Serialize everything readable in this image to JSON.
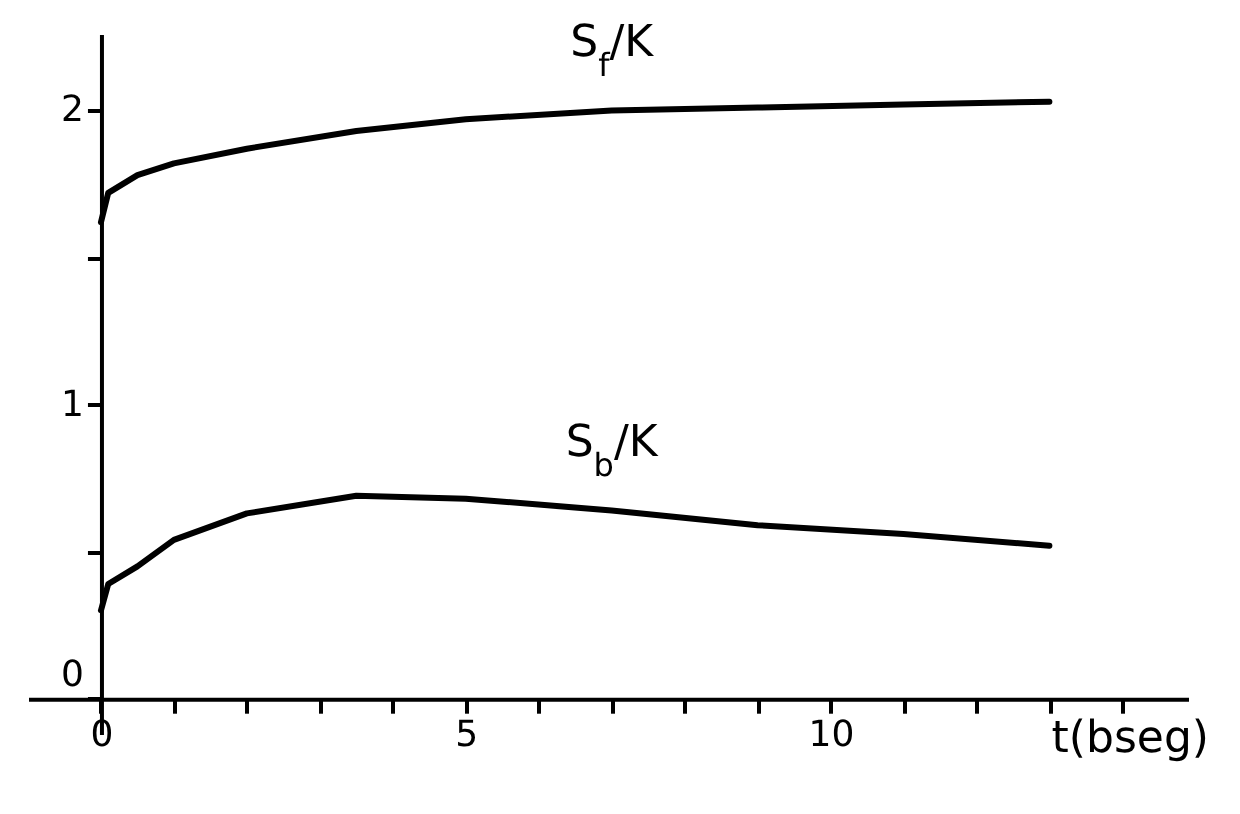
{
  "chart_data": {
    "type": "line",
    "xlabel": "t(bseg)",
    "x": [
      0,
      0.1,
      0.5,
      1,
      2,
      3.5,
      5,
      7,
      9,
      11,
      13
    ],
    "series": [
      {
        "name": "S$_{f}$/K",
        "color": "#000000",
        "values": [
          1.62,
          1.72,
          1.78,
          1.82,
          1.87,
          1.93,
          1.97,
          2.0,
          2.01,
          2.02,
          2.03
        ]
      },
      {
        "name": "S$_{b}$/K",
        "color": "#000000",
        "values": [
          0.3,
          0.39,
          0.45,
          0.54,
          0.63,
          0.69,
          0.68,
          0.64,
          0.59,
          0.56,
          0.52
        ]
      }
    ],
    "xlim": [
      -1,
      14.9
    ],
    "ylim": [
      -0.12,
      2.26
    ],
    "xticks": [
      0,
      {
        "value": 1,
        "label": null
      },
      {
        "value": 2,
        "label": null
      },
      {
        "value": 3,
        "label": null
      },
      {
        "value": 4,
        "label": null
      },
      5,
      {
        "value": 6,
        "label": null
      },
      {
        "value": 7,
        "label": null
      },
      {
        "value": 8,
        "label": null
      },
      {
        "value": 9,
        "label": null
      },
      10,
      {
        "value": 11,
        "label": null
      },
      {
        "value": 12,
        "label": null
      },
      {
        "value": 13,
        "label": null
      },
      {
        "value": 14,
        "label": null
      }
    ],
    "yticks": [
      0,
      {
        "value": 0.5,
        "label": null
      },
      1,
      {
        "value": 1.5,
        "label": null
      },
      2
    ],
    "grid": false,
    "legend": false,
    "marker": "none",
    "line_style": "solid"
  }
}
